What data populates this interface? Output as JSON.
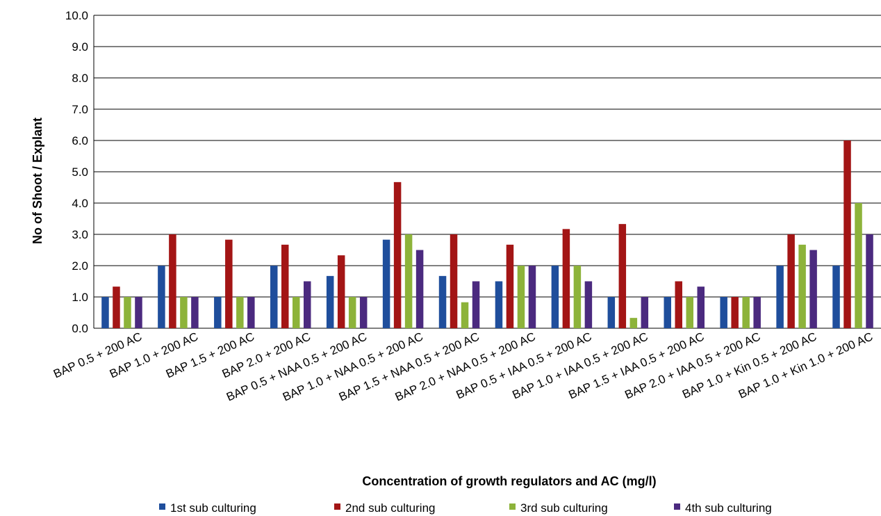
{
  "chart_data": {
    "type": "bar",
    "title": "",
    "xlabel": "Concentration of growth regulators and AC (mg/l)",
    "ylabel": "No of Shoot / Explant",
    "ylim": [
      0,
      10
    ],
    "yticks": [
      "0.0",
      "1.0",
      "2.0",
      "3.0",
      "4.0",
      "5.0",
      "6.0",
      "7.0",
      "8.0",
      "9.0",
      "10.0"
    ],
    "grid": true,
    "legend_position": "bottom",
    "categories": [
      "BAP 0.5 + 200 AC",
      "BAP 1.0 + 200 AC",
      "BAP 1.5 + 200 AC",
      "BAP 2.0 + 200 AC",
      "BAP 0.5 + NAA 0.5 + 200 AC",
      "BAP 1.0 + NAA 0.5 + 200 AC",
      "BAP 1.5 + NAA 0.5 + 200 AC",
      "BAP 2.0  + NAA 0.5 + 200 AC",
      "BAP 0.5 + IAA 0.5 + 200 AC",
      "BAP 1.0 + IAA 0.5 + 200 AC",
      "BAP 1.5 + IAA 0.5 + 200 AC",
      "BAP 2.0 + IAA 0.5 + 200 AC",
      "BAP 1.0 + Kin 0.5 + 200 AC",
      "BAP 1.0 + Kin 1.0 + 200 AC"
    ],
    "series": [
      {
        "name": "1st  sub culturing",
        "color": "#1F4E9C",
        "values": [
          1.0,
          2.0,
          1.0,
          2.0,
          1.67,
          2.83,
          1.67,
          1.5,
          2.0,
          1.0,
          1.0,
          1.0,
          2.0,
          2.0
        ]
      },
      {
        "name": "2nd sub culturing",
        "color": "#A31515",
        "values": [
          1.33,
          3.0,
          2.83,
          2.67,
          2.33,
          4.67,
          3.0,
          2.67,
          3.17,
          3.33,
          1.5,
          1.0,
          3.0,
          6.0
        ]
      },
      {
        "name": "3rd sub culturing",
        "color": "#8DB33A",
        "values": [
          1.0,
          1.0,
          1.0,
          1.0,
          1.0,
          3.0,
          0.83,
          2.0,
          2.0,
          0.33,
          1.0,
          1.0,
          2.67,
          4.0
        ]
      },
      {
        "name": "4th sub culturing",
        "color": "#4B2A7F",
        "values": [
          1.0,
          1.0,
          1.0,
          1.5,
          1.0,
          2.5,
          1.5,
          2.0,
          1.5,
          1.0,
          1.33,
          1.0,
          2.5,
          3.0
        ]
      }
    ]
  }
}
